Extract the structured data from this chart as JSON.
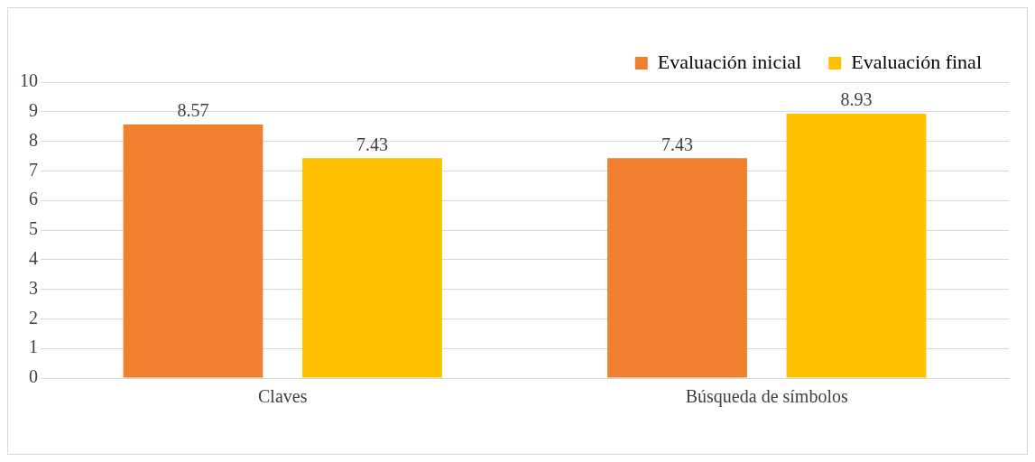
{
  "chart_data": {
    "type": "bar",
    "categories": [
      "Claves",
      "Búsqueda de símbolos"
    ],
    "series": [
      {
        "name": "Evaluación inicial",
        "color": "#f07f2e",
        "values": [
          8.57,
          7.43
        ]
      },
      {
        "name": "Evaluación final",
        "color": "#ffc000",
        "values": [
          7.43,
          8.93
        ]
      }
    ],
    "ylim": [
      0,
      10
    ],
    "yticks": [
      0,
      1,
      2,
      3,
      4,
      5,
      6,
      7,
      8,
      9,
      10
    ],
    "grid": "y",
    "legend": "top right",
    "data_labels": true
  }
}
